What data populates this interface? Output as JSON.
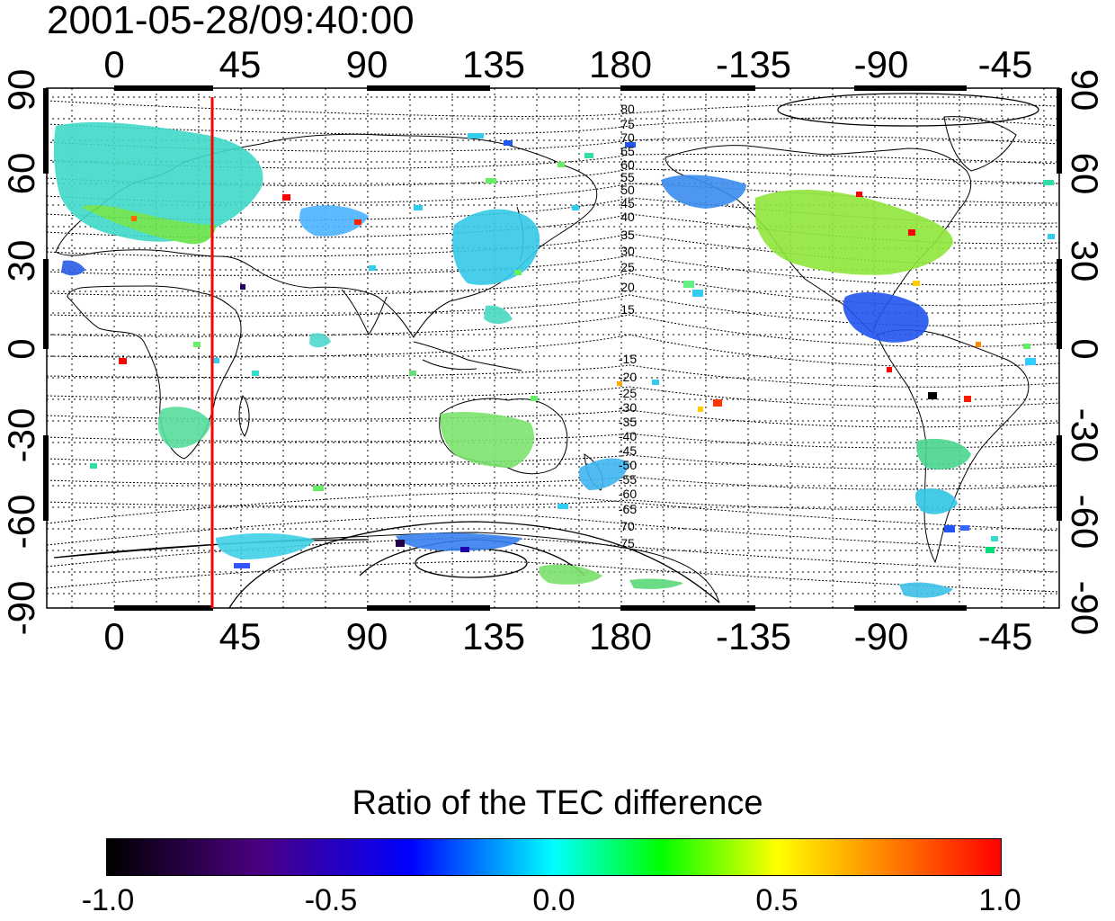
{
  "timestamp": "2001-05-28/09:40:00",
  "map": {
    "top_lon_labels": [
      "0",
      "45",
      "90",
      "135",
      "180",
      "-135",
      "-90",
      "-45"
    ],
    "bottom_lon_labels": [
      "0",
      "45",
      "90",
      "135",
      "180",
      "-135",
      "-90",
      "-45"
    ],
    "left_lat_labels": [
      "90",
      "60",
      "30",
      "0",
      "-30",
      "-60",
      "-90"
    ],
    "right_lat_labels": [
      "90",
      "60",
      "30",
      "0",
      "-30",
      "-60",
      "-90"
    ],
    "north_contour_labels": [
      "80",
      "75",
      "70",
      "65",
      "60",
      "55",
      "50",
      "45",
      "40",
      "35",
      "30",
      "25",
      "20",
      "15"
    ],
    "south_contour_labels": [
      "-15",
      "-20",
      "-25",
      "-30",
      "-35",
      "-40",
      "-45",
      "-50",
      "-55",
      "-60",
      "-65",
      "70",
      "75"
    ],
    "marker_line_color": "#ff0000"
  },
  "colorbar": {
    "title": "Ratio of the TEC difference",
    "tick_labels": [
      "-1.0",
      "-0.5",
      "0.0",
      "0.5",
      "1.0"
    ],
    "stops": [
      "#000000",
      "#4b0082",
      "#0000ff",
      "#00ffff",
      "#00ff00",
      "#ffff00",
      "#ff0000"
    ]
  }
}
